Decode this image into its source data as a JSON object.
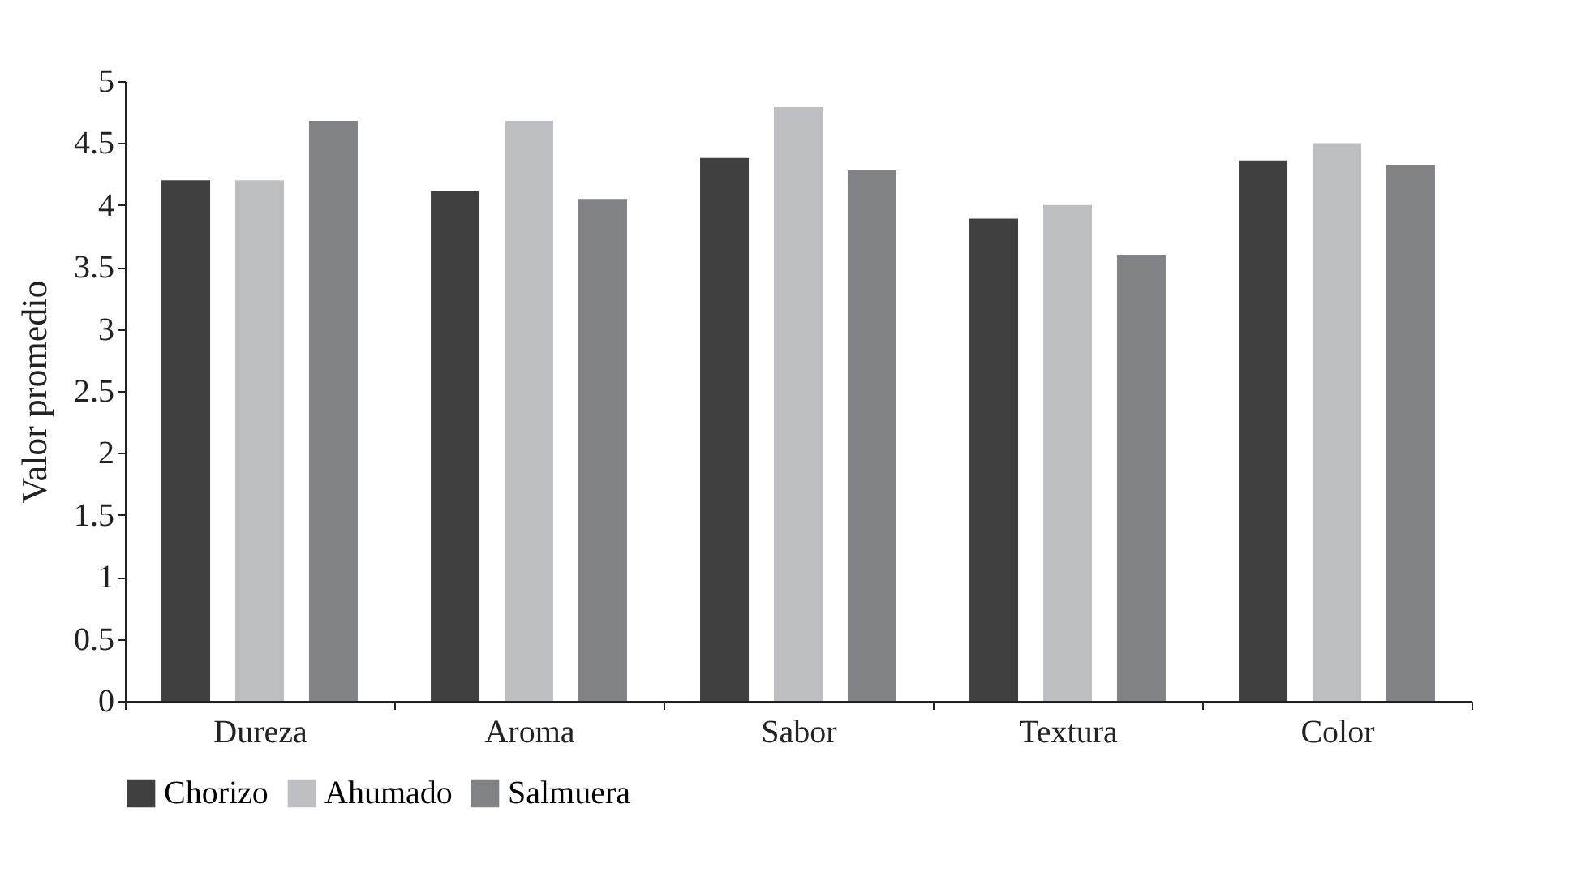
{
  "chart_data": {
    "type": "bar",
    "ylabel": "Valor promedio",
    "categories": [
      "Dureza",
      "Aroma",
      "Sabor",
      "Textura",
      "Color"
    ],
    "series": [
      {
        "name": "Chorizo",
        "color": "#404040",
        "values": [
          4.2,
          4.11,
          4.38,
          3.89,
          4.36
        ]
      },
      {
        "name": "Ahumado",
        "color": "#bdbec2",
        "values": [
          4.2,
          4.68,
          4.79,
          4.0,
          4.5
        ]
      },
      {
        "name": "Salmuera",
        "color": "#818286",
        "values": [
          4.68,
          4.05,
          4.28,
          3.6,
          4.32
        ]
      }
    ],
    "ylim": [
      0,
      5
    ],
    "yticks": [
      0,
      0.5,
      1,
      1.5,
      2,
      2.5,
      3,
      3.5,
      4,
      4.5,
      5
    ],
    "grid": false,
    "legend": "bottom"
  }
}
